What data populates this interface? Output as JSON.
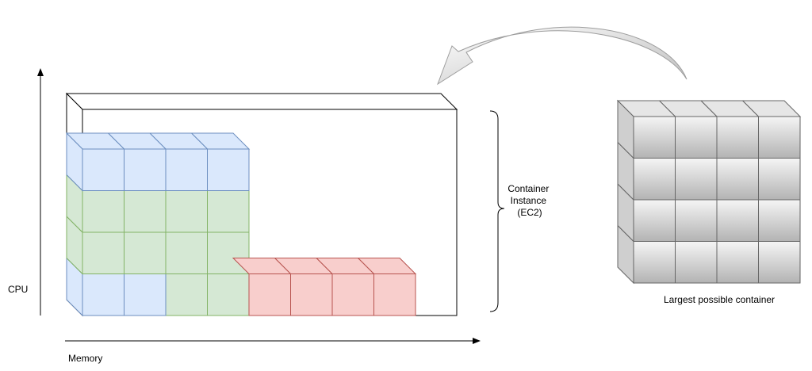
{
  "labels": {
    "cpu_axis": "CPU",
    "memory_axis": "Memory",
    "container_instance": [
      "Container",
      "Instance",
      "(EC2)"
    ],
    "largest_container": "Largest possible container"
  },
  "grid": {
    "left": {
      "columns": 4,
      "blue_top_rows": 1,
      "green_rows": 2,
      "bottom_row": [
        "blue",
        "blue",
        "green",
        "green"
      ]
    },
    "red_blocks": 4,
    "gray": {
      "columns": 4,
      "rows": 4
    }
  },
  "colors": {
    "blue_fill": "#dae8fc",
    "blue_stroke": "#6c8ebf",
    "green_fill": "#d5e8d4",
    "green_stroke": "#82b366",
    "red_fill": "#f8cecc",
    "red_stroke": "#b85450",
    "gray_light": "#f5f5f5",
    "gray_dark": "#b3b3b3",
    "gray_stroke": "#666666",
    "line": "#000000"
  },
  "icons": {
    "arrow": "curved-arrow-icon",
    "brace": "curly-brace-icon"
  }
}
